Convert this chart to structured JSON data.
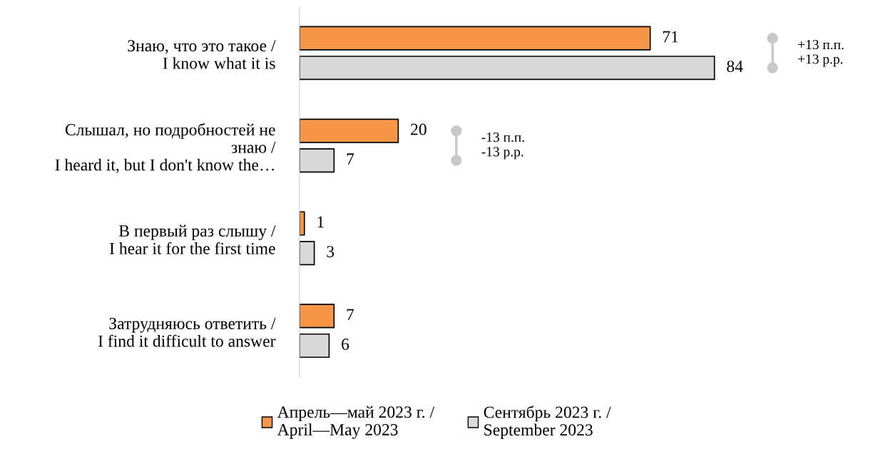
{
  "chart_data": {
    "type": "bar",
    "orientation": "horizontal",
    "relative": false,
    "categories": [
      "Знаю, что это такое /\nI know what it is",
      "Слышал, но подробностей не\nзнаю /\nI heard it, but I don't know the…",
      "В первый раз слышу /\nI hear it for the first time",
      "Затрудняюсь ответить /\nI find it difficult to answer"
    ],
    "series": [
      {
        "name": "Апрель—май 2023 г. /\nApril—May 2023",
        "color": "#f79646",
        "values": [
          71,
          20,
          1,
          7
        ]
      },
      {
        "name": "Сентябрь 2023 г. /\nSeptember 2023",
        "color": "#d9d9d9",
        "values": [
          84,
          7,
          3,
          6
        ]
      }
    ],
    "data_labels": true,
    "legend": "bottom",
    "grid": false,
    "tick_labels": "y",
    "annotations": [
      "+13 п.п.\n+13 p.p.",
      "-13 п.п.\n-13 p.p."
    ]
  }
}
